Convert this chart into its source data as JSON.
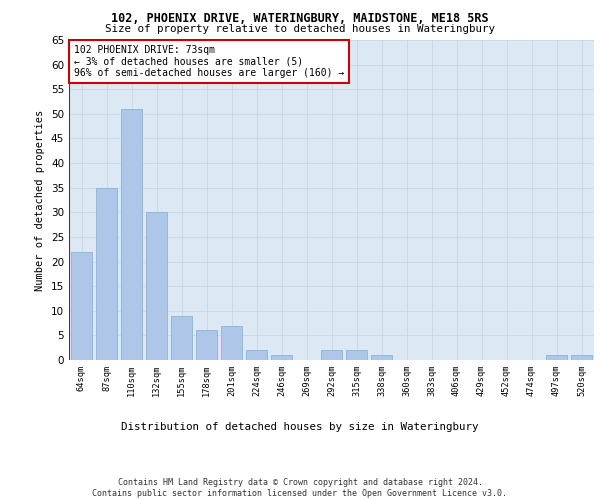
{
  "title1": "102, PHOENIX DRIVE, WATERINGBURY, MAIDSTONE, ME18 5RS",
  "title2": "Size of property relative to detached houses in Wateringbury",
  "xlabel": "Distribution of detached houses by size in Wateringbury",
  "ylabel": "Number of detached properties",
  "categories": [
    "64sqm",
    "87sqm",
    "110sqm",
    "132sqm",
    "155sqm",
    "178sqm",
    "201sqm",
    "224sqm",
    "246sqm",
    "269sqm",
    "292sqm",
    "315sqm",
    "338sqm",
    "360sqm",
    "383sqm",
    "406sqm",
    "429sqm",
    "452sqm",
    "474sqm",
    "497sqm",
    "520sqm"
  ],
  "values": [
    22,
    35,
    51,
    30,
    9,
    6,
    7,
    2,
    1,
    0,
    2,
    2,
    1,
    0,
    0,
    0,
    0,
    0,
    0,
    1,
    1
  ],
  "bar_color": "#aec6e8",
  "bar_edge_color": "#7bafd4",
  "ylim": [
    0,
    65
  ],
  "yticks": [
    0,
    5,
    10,
    15,
    20,
    25,
    30,
    35,
    40,
    45,
    50,
    55,
    60,
    65
  ],
  "annotation_text": "102 PHOENIX DRIVE: 73sqm\n← 3% of detached houses are smaller (5)\n96% of semi-detached houses are larger (160) →",
  "annotation_box_color": "#ffffff",
  "annotation_box_edge_color": "#cc0000",
  "vline_color": "#cc0000",
  "grid_color": "#c8d8e8",
  "background_color": "#dde8f5",
  "footer_text": "Contains HM Land Registry data © Crown copyright and database right 2024.\nContains public sector information licensed under the Open Government Licence v3.0."
}
